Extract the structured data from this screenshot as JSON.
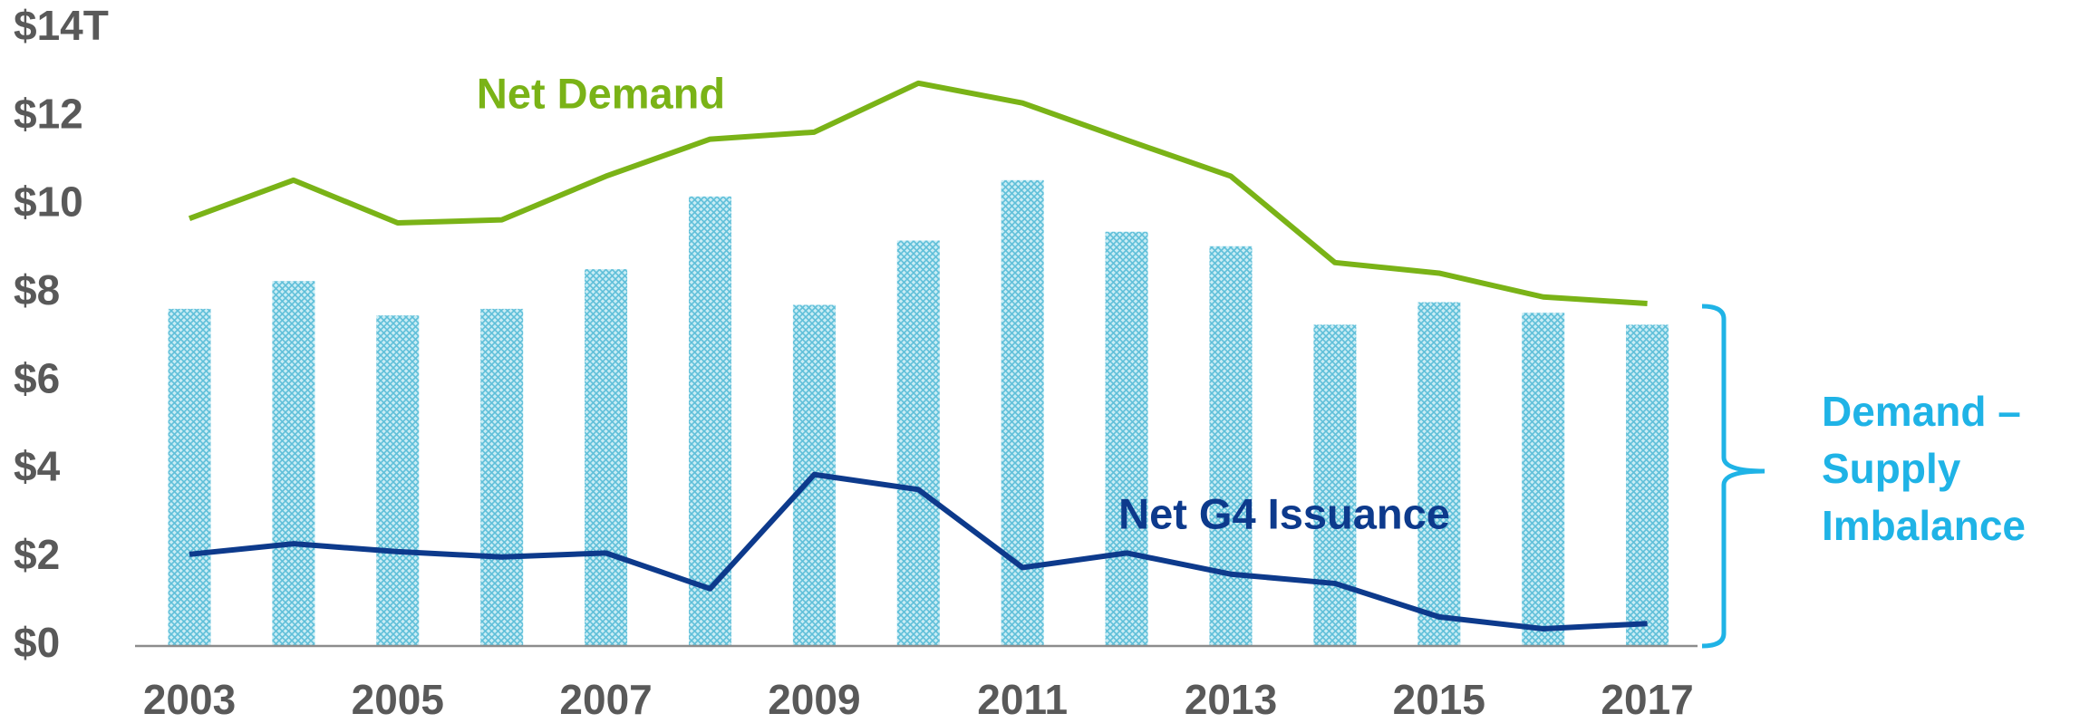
{
  "chart_data": {
    "type": "bar-line",
    "categories": [
      "2003",
      null,
      "2005",
      null,
      "2007",
      null,
      "2009",
      null,
      "2011",
      null,
      "2013",
      null,
      "2015",
      null,
      "2017"
    ],
    "series": [
      {
        "type": "bar",
        "color": "#8fd3e6",
        "values": [
          7.65,
          8.28,
          7.5,
          7.65,
          8.55,
          10.2,
          7.74,
          9.2,
          10.57,
          9.4,
          9.07,
          7.29,
          7.8,
          7.56,
          7.29
        ]
      },
      {
        "type": "line",
        "name": "Net Demand",
        "color": "#7ab317",
        "values": [
          9.7,
          10.57,
          9.6,
          9.67,
          10.66,
          11.5,
          11.66,
          12.77,
          12.32,
          11.48,
          10.66,
          8.7,
          8.46,
          7.92,
          7.77
        ]
      },
      {
        "type": "line",
        "name": "Net G4 Issuance",
        "color": "#0d3a8c",
        "values": [
          2.08,
          2.32,
          2.14,
          2.02,
          2.11,
          1.3,
          3.89,
          3.55,
          1.78,
          2.11,
          1.63,
          1.42,
          0.66,
          0.39,
          0.51
        ]
      }
    ],
    "annotation": {
      "lines": [
        "Demand –",
        "Supply",
        "Imbalance"
      ],
      "color": "#1fb3e6"
    },
    "ylim": [
      0,
      14
    ],
    "yticks": [
      {
        "value": 0,
        "label": "$0"
      },
      {
        "value": 2,
        "label": "$2"
      },
      {
        "value": 4,
        "label": "$4"
      },
      {
        "value": 6,
        "label": "$6"
      },
      {
        "value": 8,
        "label": "$8"
      },
      {
        "value": 10,
        "label": "$10"
      },
      {
        "value": 12,
        "label": "$12"
      },
      {
        "value": 14,
        "label": "$14T"
      }
    ],
    "grid": false
  }
}
